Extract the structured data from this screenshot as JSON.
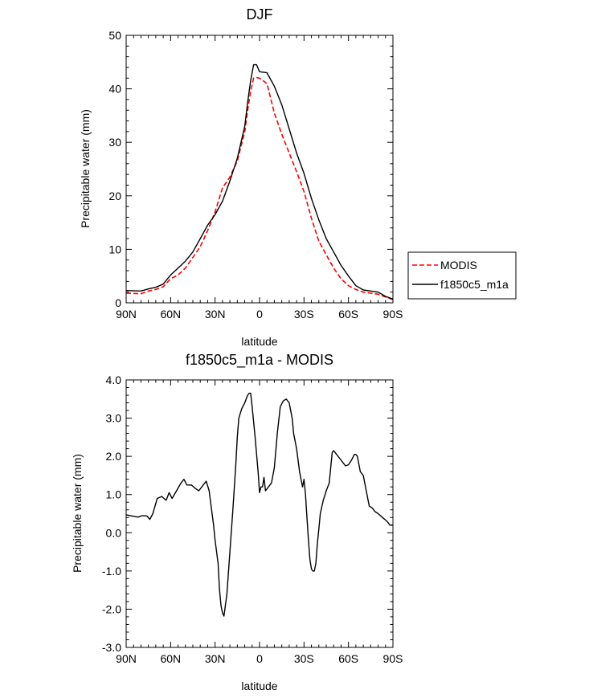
{
  "chart_data": [
    {
      "type": "line",
      "title": "DJF",
      "xlabel": "latitude",
      "ylabel": "Precipitable water (mm)",
      "xlim": [
        -90,
        90
      ],
      "ylim": [
        0,
        50
      ],
      "x_ticks": [
        {
          "value": -90,
          "label": "90N"
        },
        {
          "value": -60,
          "label": "60N"
        },
        {
          "value": -30,
          "label": "30N"
        },
        {
          "value": 0,
          "label": "0"
        },
        {
          "value": 30,
          "label": "30S"
        },
        {
          "value": 60,
          "label": "60S"
        },
        {
          "value": 90,
          "label": "90S"
        }
      ],
      "y_ticks": [
        {
          "value": 0,
          "label": "0"
        },
        {
          "value": 10,
          "label": "10"
        },
        {
          "value": 20,
          "label": "20"
        },
        {
          "value": 30,
          "label": "30"
        },
        {
          "value": 40,
          "label": "40"
        },
        {
          "value": 50,
          "label": "50"
        }
      ],
      "legend_position": "right",
      "series": [
        {
          "name": "MODIS",
          "color": "#ff0000",
          "dashed": true,
          "x": [
            -90,
            -80,
            -75,
            -70,
            -65,
            -60,
            -55,
            -50,
            -45,
            -40,
            -35,
            -30,
            -25,
            -20,
            -15,
            -10,
            -8,
            -6,
            -4,
            -2,
            0,
            5,
            10,
            15,
            20,
            25,
            30,
            35,
            40,
            45,
            50,
            55,
            60,
            65,
            70,
            75,
            80,
            85,
            90
          ],
          "y": [
            1.8,
            1.7,
            2.2,
            2.5,
            3.0,
            4.5,
            5.2,
            6.5,
            8.5,
            10.5,
            13.5,
            17.0,
            21.5,
            23.5,
            26.5,
            32.0,
            36.0,
            39.5,
            42.0,
            42.1,
            42.0,
            41.0,
            35.5,
            31.5,
            28.0,
            24.5,
            20.8,
            15.8,
            11.5,
            9.0,
            6.5,
            4.5,
            3.2,
            2.5,
            2.0,
            1.8,
            1.6,
            1.1,
            0.6
          ]
        },
        {
          "name": "f1850c5_m1a",
          "color": "#000000",
          "dashed": false,
          "x": [
            -90,
            -80,
            -75,
            -70,
            -65,
            -60,
            -55,
            -50,
            -45,
            -40,
            -35,
            -30,
            -25,
            -20,
            -15,
            -10,
            -8,
            -6,
            -4,
            -2,
            0,
            5,
            10,
            15,
            20,
            25,
            30,
            35,
            40,
            45,
            50,
            55,
            60,
            65,
            70,
            75,
            80,
            85,
            90
          ],
          "y": [
            2.3,
            2.2,
            2.6,
            2.9,
            3.5,
            5.2,
            6.5,
            7.8,
            9.5,
            12.0,
            14.5,
            16.5,
            19.0,
            22.8,
            27.0,
            33.0,
            37.5,
            41.5,
            44.5,
            44.5,
            43.2,
            43.0,
            40.5,
            37.0,
            32.5,
            28.0,
            24.2,
            19.5,
            15.5,
            12.0,
            9.5,
            7.0,
            5.0,
            3.2,
            2.4,
            2.2,
            2.0,
            1.2,
            0.7
          ]
        }
      ]
    },
    {
      "type": "line",
      "title": "f1850c5_m1a - MODIS",
      "xlabel": "latitude",
      "ylabel": "Precipitable water (mm)",
      "xlim": [
        -90,
        90
      ],
      "ylim": [
        -3.0,
        4.0
      ],
      "x_ticks": [
        {
          "value": -90,
          "label": "90N"
        },
        {
          "value": -60,
          "label": "60N"
        },
        {
          "value": -30,
          "label": "30N"
        },
        {
          "value": 0,
          "label": "0"
        },
        {
          "value": 30,
          "label": "30S"
        },
        {
          "value": 60,
          "label": "60S"
        },
        {
          "value": 90,
          "label": "90S"
        }
      ],
      "y_ticks": [
        {
          "value": -3.0,
          "label": "-3.0"
        },
        {
          "value": -2.0,
          "label": "-2.0"
        },
        {
          "value": -1.0,
          "label": "-1.0"
        },
        {
          "value": 0.0,
          "label": "0.0"
        },
        {
          "value": 1.0,
          "label": "1.0"
        },
        {
          "value": 2.0,
          "label": "2.0"
        },
        {
          "value": 3.0,
          "label": "3.0"
        },
        {
          "value": 4.0,
          "label": "4.0"
        }
      ],
      "series": [
        {
          "name": "",
          "color": "#000000",
          "dashed": false,
          "x": [
            -90,
            -86,
            -82,
            -79,
            -76,
            -74,
            -72,
            -69,
            -66,
            -63,
            -61,
            -59,
            -56,
            -53,
            -51,
            -49,
            -46,
            -43,
            -41,
            -39,
            -36,
            -34,
            -33,
            -31,
            -30,
            -28,
            -27,
            -26,
            -25,
            -24,
            -22,
            -20,
            -18,
            -16,
            -15,
            -14,
            -12,
            -10,
            -8,
            -7,
            -6,
            -5,
            -3,
            -1,
            0,
            1,
            2,
            3,
            4,
            6,
            8,
            10,
            12,
            14,
            16,
            18,
            20,
            22,
            23,
            25,
            27,
            29,
            30,
            31,
            32,
            33,
            34,
            35,
            36,
            37,
            38,
            39,
            40,
            41,
            43,
            45,
            47,
            49,
            50,
            51,
            52,
            54,
            56,
            58,
            60,
            62,
            64,
            65,
            66,
            67,
            68,
            70,
            72,
            74,
            76,
            78,
            80,
            83,
            86,
            88,
            90
          ],
          "y": [
            0.47,
            0.44,
            0.41,
            0.45,
            0.44,
            0.35,
            0.5,
            0.9,
            0.95,
            0.85,
            1.05,
            0.9,
            1.1,
            1.3,
            1.4,
            1.25,
            1.25,
            1.15,
            1.1,
            1.2,
            1.35,
            1.1,
            0.8,
            0.2,
            -0.2,
            -0.8,
            -1.5,
            -1.9,
            -2.1,
            -2.18,
            -1.6,
            -0.5,
            0.6,
            1.8,
            2.5,
            3.0,
            3.25,
            3.4,
            3.6,
            3.65,
            3.65,
            3.3,
            2.5,
            1.6,
            1.05,
            1.2,
            1.2,
            1.45,
            1.1,
            1.2,
            1.3,
            1.7,
            2.6,
            3.3,
            3.45,
            3.5,
            3.4,
            3.0,
            2.6,
            2.2,
            1.6,
            1.2,
            1.4,
            1.0,
            0.4,
            -0.2,
            -0.7,
            -0.95,
            -1.0,
            -1.0,
            -0.8,
            -0.3,
            0.1,
            0.5,
            0.85,
            1.1,
            1.3,
            2.1,
            2.15,
            2.1,
            2.05,
            1.95,
            1.85,
            1.75,
            1.78,
            1.9,
            2.05,
            2.05,
            2.0,
            1.8,
            1.6,
            1.5,
            1.1,
            0.7,
            0.65,
            0.55,
            0.5,
            0.4,
            0.3,
            0.2,
            0.2
          ]
        }
      ]
    }
  ]
}
